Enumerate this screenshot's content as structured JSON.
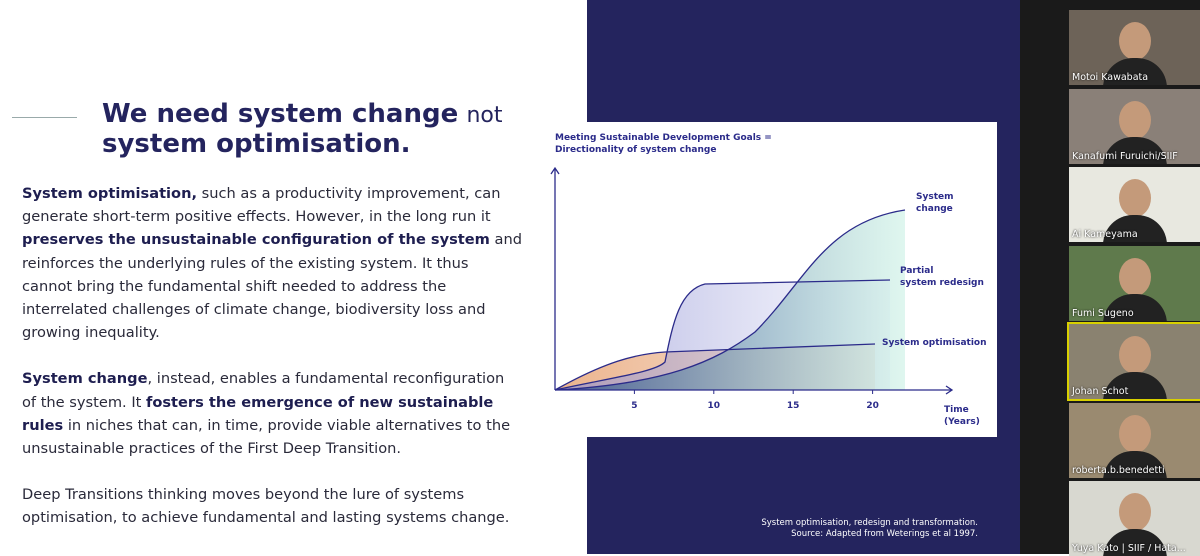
{
  "slide": {
    "title": {
      "line1_bold": "We need system change",
      "line1_rest": "not",
      "line2": "system optimisation."
    },
    "paragraphs": [
      [
        {
          "text": "System optimisation,",
          "bold": true
        },
        {
          "text": " such as a productivity improvement, can generate short-term positive effects. However, in the long run it "
        },
        {
          "text": "preserves the unsustainable configuration of the system",
          "bold": true
        },
        {
          "text": " and reinforces the underlying rules of the existing system. It thus cannot bring the fundamental shift needed to address the interrelated challenges of climate change, biodiversity loss and growing inequality."
        }
      ],
      [
        {
          "text": "System change",
          "bold": true
        },
        {
          "text": ", instead, enables a fundamental reconfiguration of the system. It "
        },
        {
          "text": "fosters the emergence of new sustainable rules",
          "bold": true
        },
        {
          "text": " in niches that can, in time, provide viable alternatives to the unsustainable practices of the First Deep Transition."
        }
      ],
      [
        {
          "text": "Deep Transitions thinking moves beyond the lure of systems optimisation, to achieve fundamental and lasting systems change."
        }
      ]
    ],
    "chart": {
      "title": [
        "Meeting Sustainable Development Goals =",
        "Directionality of system change"
      ],
      "xlabel": [
        "Time",
        "(Years)"
      ],
      "xlim": [
        0,
        25
      ],
      "xticks": [
        5,
        10,
        15,
        20
      ],
      "curve_labels": {
        "system_change": [
          "System",
          "change"
        ],
        "partial": [
          "Partial",
          "system redesign"
        ],
        "optimisation": [
          "System optimisation"
        ]
      }
    },
    "caption": [
      "System optimisation, redesign and transformation.",
      "Source: Adapted from Weterings et al 1997."
    ]
  },
  "participants": [
    "Motoi Kawabata",
    "Kanafumi Furuichi/SIIF",
    "Ai Kameyama",
    "Fumi Sugeno",
    "Johan Schot",
    "roberta.b.benedetti",
    "Yuya Kato | SIIF / Hata..."
  ]
}
